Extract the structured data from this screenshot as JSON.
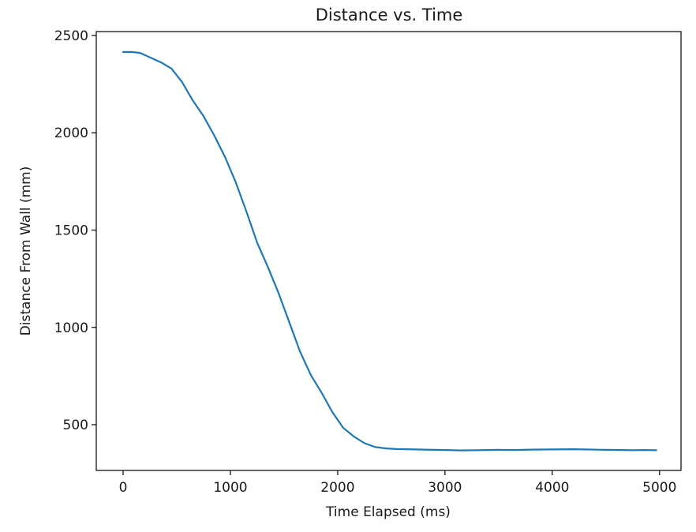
{
  "chart_data": {
    "type": "line",
    "title": "Distance vs. Time",
    "xlabel": "Time Elapsed (ms)",
    "ylabel": "Distance From Wall (mm)",
    "xlim": [
      -250,
      5200
    ],
    "ylim": [
      265,
      2520
    ],
    "xticks": [
      0,
      1000,
      2000,
      3000,
      4000,
      5000
    ],
    "yticks": [
      500,
      1000,
      1500,
      2000,
      2500
    ],
    "grid": false,
    "line_color": "#1f77b4",
    "series": [
      {
        "x": [
          0,
          80,
          160,
          260,
          360,
          450,
          550,
          650,
          750,
          850,
          950,
          1050,
          1150,
          1250,
          1350,
          1450,
          1550,
          1650,
          1750,
          1850,
          1950,
          2050,
          2150,
          2250,
          2350,
          2450,
          2550,
          2650,
          2800,
          3000,
          3150,
          3300,
          3500,
          3650,
          3800,
          4000,
          4200,
          4300,
          4500,
          4650,
          4750,
          4850,
          4970
        ],
        "y": [
          2415,
          2415,
          2410,
          2385,
          2360,
          2330,
          2260,
          2165,
          2085,
          1985,
          1875,
          1745,
          1595,
          1435,
          1310,
          1175,
          1025,
          875,
          755,
          665,
          565,
          485,
          440,
          405,
          385,
          378,
          375,
          374,
          372,
          370,
          368,
          369,
          371,
          370,
          372,
          373,
          374,
          373,
          371,
          370,
          369,
          370,
          369
        ]
      }
    ]
  }
}
